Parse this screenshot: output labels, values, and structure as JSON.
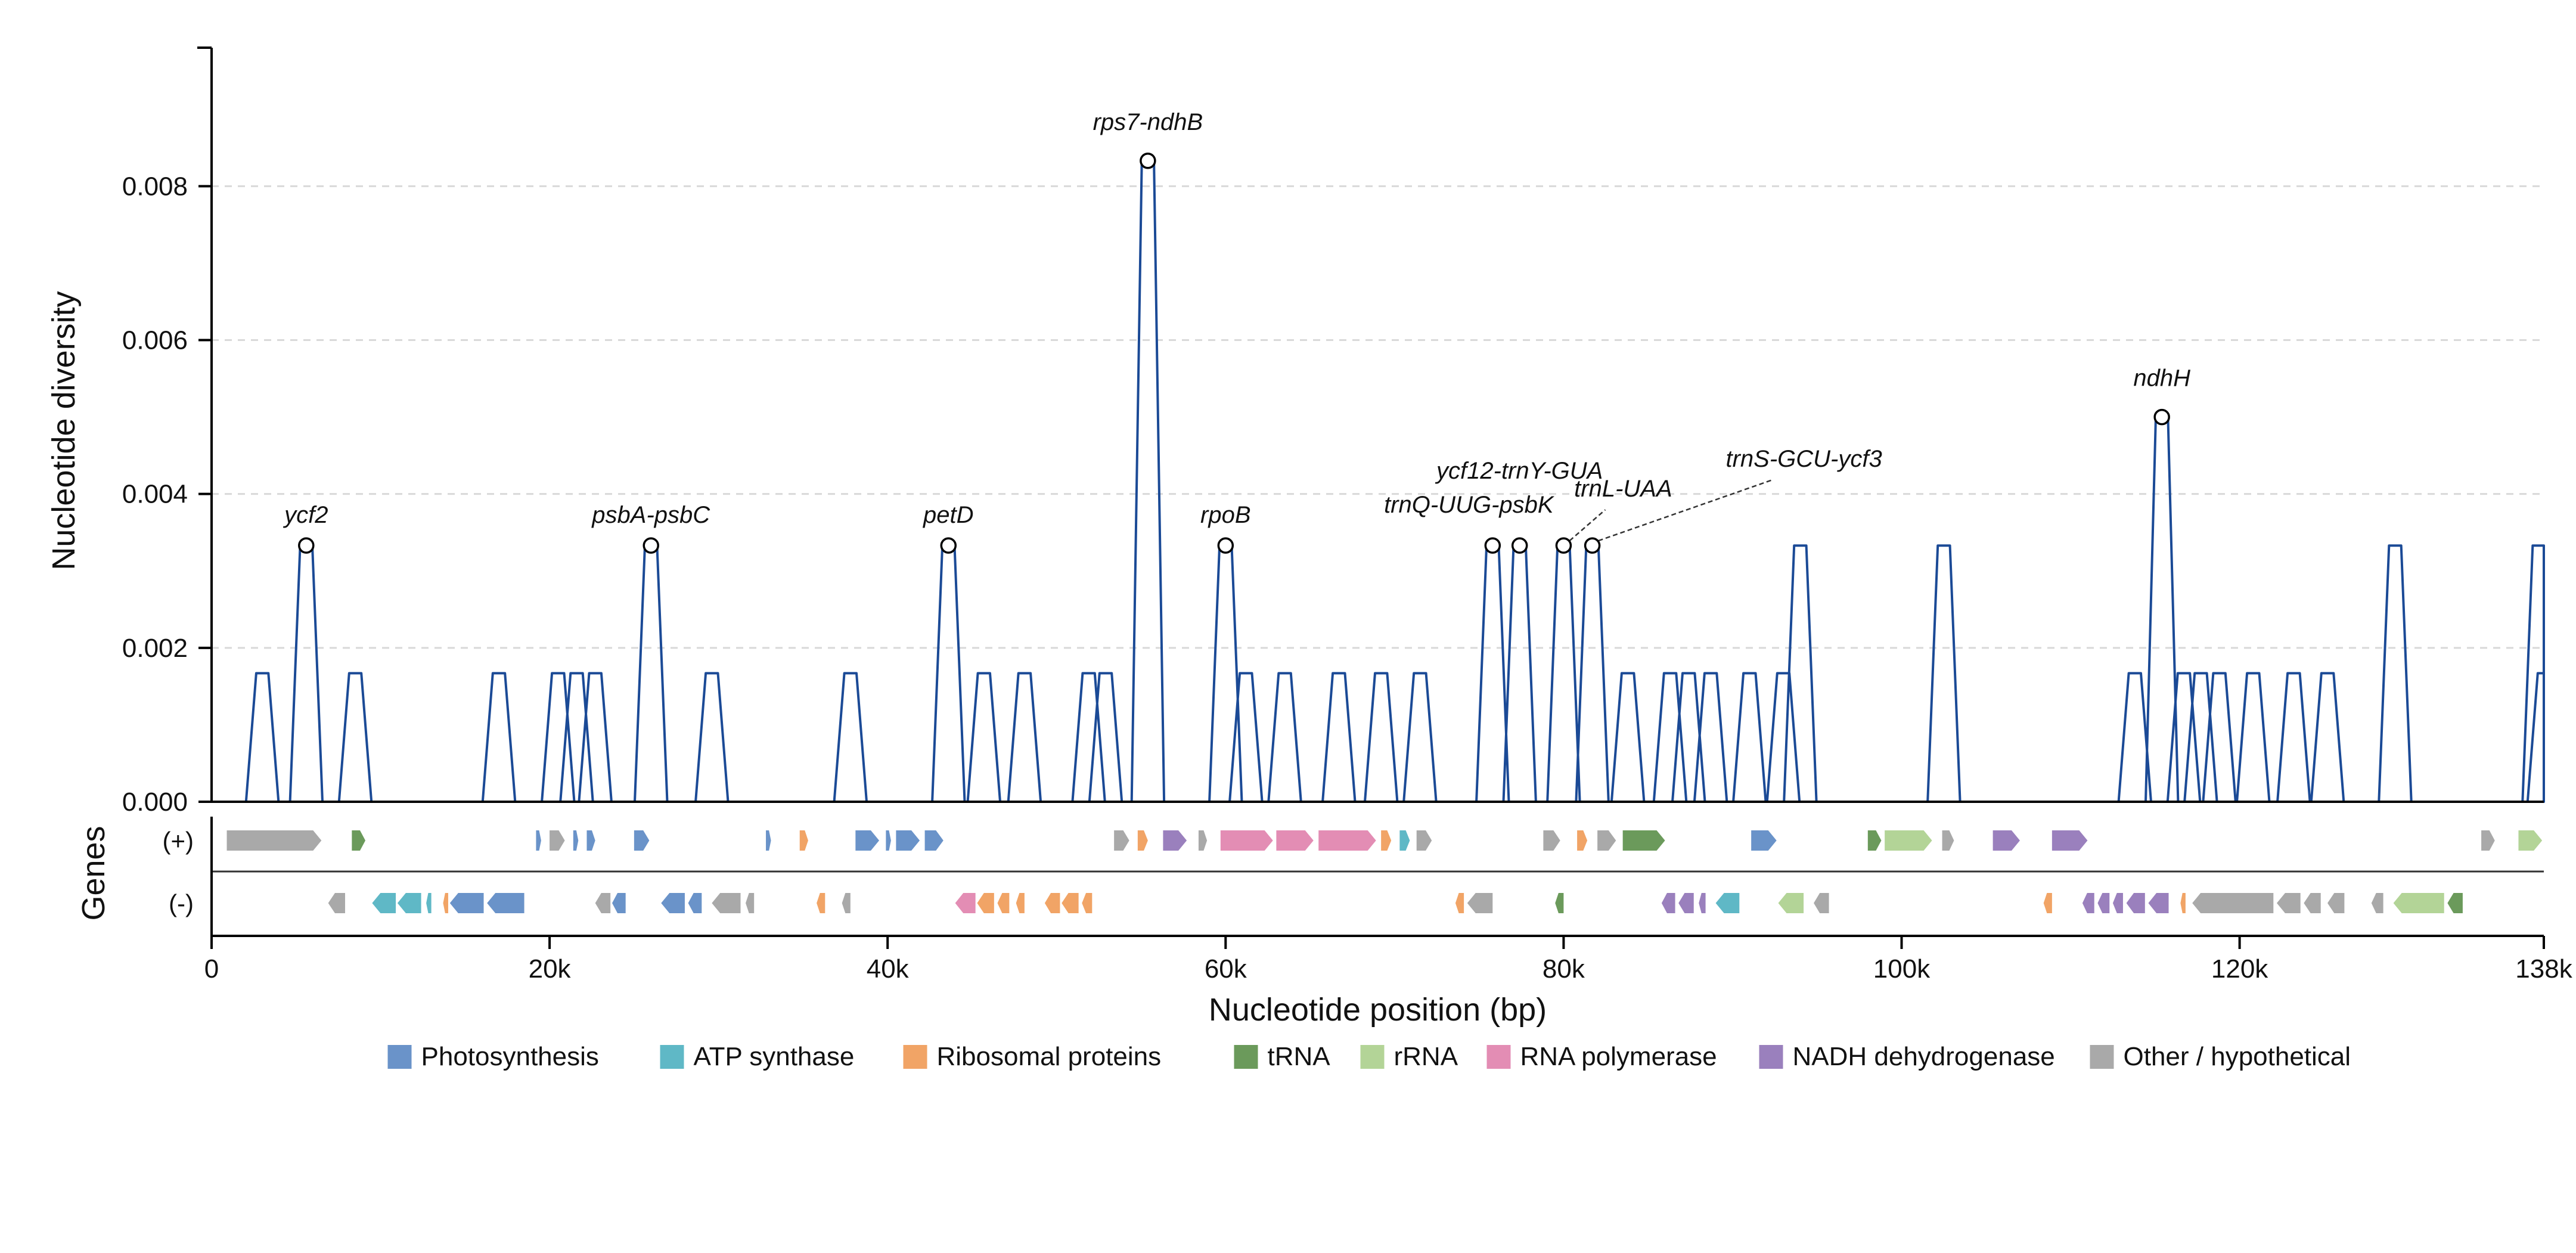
{
  "colors": {
    "line": "#1b4a96",
    "grid": "#d9d9d9",
    "axis": "#000000",
    "marker_fill": "#ffffff",
    "marker_stroke": "#000000"
  },
  "chart_data": {
    "type": "line",
    "title": "",
    "xlabel": "Nucleotide position (bp)",
    "ylabel": "Nucleotide diversity",
    "gene_track_label": "Genes",
    "xlim": [
      0,
      138000
    ],
    "ylim": [
      0,
      0.0098
    ],
    "x_ticks": [
      0,
      20000,
      40000,
      60000,
      80000,
      100000,
      120000,
      138000
    ],
    "x_tick_labels": [
      "0",
      "20k",
      "40k",
      "60k",
      "80k",
      "100k",
      "120k",
      "138k"
    ],
    "y_ticks": [
      0,
      0.002,
      0.004,
      0.006,
      0.008
    ],
    "y_tick_labels": [
      "0.000",
      "0.002",
      "0.004",
      "0.006",
      "0.008"
    ],
    "grid": "horizontal dashed",
    "series": [
      {
        "x": [
          3000,
          5600,
          8500,
          17000,
          20500,
          21600,
          22700,
          26000,
          29600,
          37800,
          43600,
          45700,
          48100,
          51900,
          52900,
          55400,
          60000,
          61200,
          63500,
          66700,
          69200,
          71500,
          75800,
          77400,
          80000,
          81700,
          83800,
          86300,
          87400,
          88700,
          91000,
          93000,
          94000,
          102500,
          113800,
          115400,
          116700,
          117700,
          118800,
          120800,
          123200,
          125200,
          129200,
          137700,
          138000
        ],
        "y": [
          0.00167,
          0.00333,
          0.00167,
          0.00167,
          0.00167,
          0.00167,
          0.00167,
          0.00333,
          0.00167,
          0.00167,
          0.00333,
          0.00167,
          0.00167,
          0.00167,
          0.00167,
          0.00833,
          0.00333,
          0.00167,
          0.00167,
          0.00167,
          0.00167,
          0.00167,
          0.00333,
          0.00333,
          0.00333,
          0.00333,
          0.00167,
          0.00167,
          0.00167,
          0.00167,
          0.00167,
          0.00167,
          0.00333,
          0.00333,
          0.00167,
          0.005,
          0.00167,
          0.00167,
          0.00167,
          0.00167,
          0.00167,
          0.00167,
          0.00333,
          0.00333,
          0.00167
        ]
      }
    ],
    "annotations": [
      {
        "label": "ycf2",
        "x": 5600,
        "y": 0.00333
      },
      {
        "label": "psbA-psbC",
        "x": 26000,
        "y": 0.00333
      },
      {
        "label": "petD",
        "x": 43600,
        "y": 0.00333
      },
      {
        "label": "rps7-ndhB",
        "x": 55400,
        "y": 0.00833
      },
      {
        "label": "rpoB",
        "x": 60000,
        "y": 0.00333
      },
      {
        "label": "trnQ-UUG-psbK",
        "x": 75800,
        "y": 0.00333
      },
      {
        "label": "ycf12-trnY-GUA",
        "x": 77400,
        "y": 0.00333
      },
      {
        "label": "trnL-UAA",
        "x": 80000,
        "y": 0.00333
      },
      {
        "label": "trnS-GCU-ycf3",
        "x": 81700,
        "y": 0.00333
      },
      {
        "label": "ndhH",
        "x": 115400,
        "y": 0.005
      }
    ],
    "gene_tracks": [
      {
        "strand_label": "(+)",
        "genes": [
          {
            "start": 900,
            "end": 6500,
            "cat": "Other / hypothetical"
          },
          {
            "start": 8300,
            "end": 9100,
            "cat": "tRNA"
          },
          {
            "start": 19200,
            "end": 19500,
            "cat": "Photosynthesis"
          },
          {
            "start": 20000,
            "end": 20900,
            "cat": "Other / hypothetical"
          },
          {
            "start": 21400,
            "end": 21700,
            "cat": "Photosynthesis"
          },
          {
            "start": 22200,
            "end": 22700,
            "cat": "Photosynthesis"
          },
          {
            "start": 25000,
            "end": 25900,
            "cat": "Photosynthesis"
          },
          {
            "start": 32800,
            "end": 33100,
            "cat": "Photosynthesis"
          },
          {
            "start": 34800,
            "end": 35300,
            "cat": "Ribosomal proteins"
          },
          {
            "start": 38100,
            "end": 39500,
            "cat": "Photosynthesis"
          },
          {
            "start": 39900,
            "end": 40200,
            "cat": "Photosynthesis"
          },
          {
            "start": 40500,
            "end": 41900,
            "cat": "Photosynthesis"
          },
          {
            "start": 42200,
            "end": 43300,
            "cat": "Photosynthesis"
          },
          {
            "start": 53400,
            "end": 54300,
            "cat": "Other / hypothetical"
          },
          {
            "start": 54800,
            "end": 55400,
            "cat": "Ribosomal proteins"
          },
          {
            "start": 56300,
            "end": 57700,
            "cat": "NADH dehydrogenase"
          },
          {
            "start": 58400,
            "end": 58900,
            "cat": "Other / hypothetical"
          },
          {
            "start": 59700,
            "end": 62800,
            "cat": "RNA polymerase"
          },
          {
            "start": 63000,
            "end": 65200,
            "cat": "RNA polymerase"
          },
          {
            "start": 65500,
            "end": 68900,
            "cat": "RNA polymerase"
          },
          {
            "start": 69200,
            "end": 69800,
            "cat": "Ribosomal proteins"
          },
          {
            "start": 70300,
            "end": 70900,
            "cat": "ATP synthase"
          },
          {
            "start": 71300,
            "end": 72200,
            "cat": "Other / hypothetical"
          },
          {
            "start": 78800,
            "end": 79800,
            "cat": "Other / hypothetical"
          },
          {
            "start": 80800,
            "end": 81400,
            "cat": "Ribosomal proteins"
          },
          {
            "start": 82000,
            "end": 83100,
            "cat": "Other / hypothetical"
          },
          {
            "start": 83500,
            "end": 86000,
            "cat": "tRNA"
          },
          {
            "start": 91100,
            "end": 92600,
            "cat": "Photosynthesis"
          },
          {
            "start": 98000,
            "end": 98800,
            "cat": "tRNA"
          },
          {
            "start": 99000,
            "end": 101800,
            "cat": "rRNA"
          },
          {
            "start": 102400,
            "end": 103100,
            "cat": "Other / hypothetical"
          },
          {
            "start": 105400,
            "end": 107000,
            "cat": "NADH dehydrogenase"
          },
          {
            "start": 108900,
            "end": 111000,
            "cat": "NADH dehydrogenase"
          },
          {
            "start": 134300,
            "end": 135100,
            "cat": "Other / hypothetical"
          },
          {
            "start": 136500,
            "end": 137900,
            "cat": "rRNA"
          }
        ]
      },
      {
        "strand_label": "(-)",
        "genes": [
          {
            "start": 6900,
            "end": 7900,
            "cat": "Other / hypothetical"
          },
          {
            "start": 9500,
            "end": 10900,
            "cat": "ATP synthase"
          },
          {
            "start": 11000,
            "end": 12400,
            "cat": "ATP synthase"
          },
          {
            "start": 12700,
            "end": 13000,
            "cat": "ATP synthase"
          },
          {
            "start": 13700,
            "end": 14000,
            "cat": "Ribosomal proteins"
          },
          {
            "start": 14100,
            "end": 16100,
            "cat": "Photosynthesis"
          },
          {
            "start": 16300,
            "end": 18500,
            "cat": "Photosynthesis"
          },
          {
            "start": 22700,
            "end": 23600,
            "cat": "Other / hypothetical"
          },
          {
            "start": 23700,
            "end": 24500,
            "cat": "Photosynthesis"
          },
          {
            "start": 26600,
            "end": 28000,
            "cat": "Photosynthesis"
          },
          {
            "start": 28200,
            "end": 29000,
            "cat": "Photosynthesis"
          },
          {
            "start": 29600,
            "end": 31300,
            "cat": "Other / hypothetical"
          },
          {
            "start": 31600,
            "end": 32100,
            "cat": "Other / hypothetical"
          },
          {
            "start": 35800,
            "end": 36300,
            "cat": "Ribosomal proteins"
          },
          {
            "start": 37300,
            "end": 37800,
            "cat": "Other / hypothetical"
          },
          {
            "start": 44000,
            "end": 45200,
            "cat": "RNA polymerase"
          },
          {
            "start": 45300,
            "end": 46300,
            "cat": "Ribosomal proteins"
          },
          {
            "start": 46500,
            "end": 47200,
            "cat": "Ribosomal proteins"
          },
          {
            "start": 47600,
            "end": 48100,
            "cat": "Ribosomal proteins"
          },
          {
            "start": 49300,
            "end": 50200,
            "cat": "Ribosomal proteins"
          },
          {
            "start": 50300,
            "end": 51300,
            "cat": "Ribosomal proteins"
          },
          {
            "start": 51500,
            "end": 52100,
            "cat": "Ribosomal proteins"
          },
          {
            "start": 73600,
            "end": 74100,
            "cat": "Ribosomal proteins"
          },
          {
            "start": 74300,
            "end": 75800,
            "cat": "Other / hypothetical"
          },
          {
            "start": 79500,
            "end": 80000,
            "cat": "tRNA"
          },
          {
            "start": 85800,
            "end": 86600,
            "cat": "NADH dehydrogenase"
          },
          {
            "start": 86800,
            "end": 87700,
            "cat": "NADH dehydrogenase"
          },
          {
            "start": 88000,
            "end": 88400,
            "cat": "NADH dehydrogenase"
          },
          {
            "start": 89000,
            "end": 90400,
            "cat": "ATP synthase"
          },
          {
            "start": 92700,
            "end": 94200,
            "cat": "rRNA"
          },
          {
            "start": 94800,
            "end": 95700,
            "cat": "Other / hypothetical"
          },
          {
            "start": 108400,
            "end": 108900,
            "cat": "Ribosomal proteins"
          },
          {
            "start": 110700,
            "end": 111400,
            "cat": "NADH dehydrogenase"
          },
          {
            "start": 111600,
            "end": 112300,
            "cat": "NADH dehydrogenase"
          },
          {
            "start": 112500,
            "end": 113100,
            "cat": "NADH dehydrogenase"
          },
          {
            "start": 113300,
            "end": 114400,
            "cat": "NADH dehydrogenase"
          },
          {
            "start": 114600,
            "end": 115800,
            "cat": "NADH dehydrogenase"
          },
          {
            "start": 116500,
            "end": 116800,
            "cat": "Ribosomal proteins"
          },
          {
            "start": 117200,
            "end": 122000,
            "cat": "Other / hypothetical"
          },
          {
            "start": 122200,
            "end": 123600,
            "cat": "Other / hypothetical"
          },
          {
            "start": 123800,
            "end": 124800,
            "cat": "Other / hypothetical"
          },
          {
            "start": 125200,
            "end": 126200,
            "cat": "Other / hypothetical"
          },
          {
            "start": 127800,
            "end": 128500,
            "cat": "Other / hypothetical"
          },
          {
            "start": 129100,
            "end": 132100,
            "cat": "rRNA"
          },
          {
            "start": 132300,
            "end": 133200,
            "cat": "tRNA"
          }
        ]
      }
    ],
    "legend": {
      "placement": "bottom",
      "entries": [
        {
          "name": "Photosynthesis",
          "color": "#6a93c9"
        },
        {
          "name": "ATP synthase",
          "color": "#5fb8c6"
        },
        {
          "name": "Ribosomal proteins",
          "color": "#f1a466"
        },
        {
          "name": "tRNA",
          "color": "#6b9a5b"
        },
        {
          "name": "rRNA",
          "color": "#b3d497"
        },
        {
          "name": "RNA polymerase",
          "color": "#e38db4"
        },
        {
          "name": "NADH dehydrogenase",
          "color": "#9a80bd"
        },
        {
          "name": "Other / hypothetical",
          "color": "#a9a9a9"
        }
      ]
    }
  }
}
